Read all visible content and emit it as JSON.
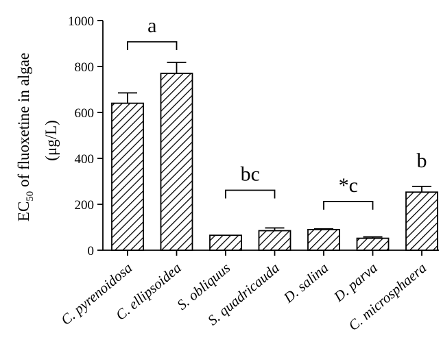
{
  "chart_data": {
    "type": "bar",
    "title": "",
    "xlabel": "",
    "ylabel": {
      "prefix": "EC",
      "subscript": "50",
      "rest": " of fluoxetine in algae",
      "unit": "(μg/L)"
    },
    "ylim": [
      0,
      1000
    ],
    "yticks": [
      "0",
      "200",
      "400",
      "600",
      "800",
      "1000"
    ],
    "grid": false,
    "pattern": "diagonal-hatch",
    "categories": [
      "C. pyrenoidosa",
      "C. ellipsoidea",
      "S. obliquus",
      "S. quadricauda",
      "D. salina",
      "D. parva",
      "C. microsphaera"
    ],
    "values": [
      640,
      770,
      65,
      85,
      90,
      52,
      253
    ],
    "errors": [
      45,
      48,
      0,
      12,
      3,
      6,
      25
    ],
    "groups": [
      {
        "label": "a",
        "from": 0,
        "to": 1,
        "bracket": true
      },
      {
        "label": "bc",
        "from": 2,
        "to": 3,
        "bracket": true
      },
      {
        "label": "*c",
        "from": 4,
        "to": 5,
        "bracket": true
      },
      {
        "label": "b",
        "from": 6,
        "to": 6,
        "bracket": false
      }
    ]
  }
}
